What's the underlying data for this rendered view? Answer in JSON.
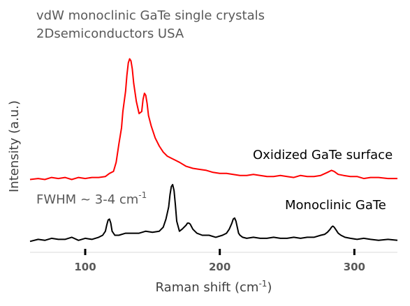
{
  "chart_data": {
    "type": "line",
    "title": "vdW monoclinic GaTe single crystals",
    "subtitle": "2Dsemiconductors USA",
    "xlabel": "Raman shift (cm",
    "xlabel_sup": "-1",
    "xlabel_end": ")",
    "ylabel": "Intensity (a.u.)",
    "xlim": [
      59,
      332
    ],
    "ylim": [
      0,
      1
    ],
    "x_ticks": [
      100,
      200,
      300
    ],
    "x_tick_labels": [
      "100",
      "200",
      "300"
    ],
    "grid": false,
    "annotations": {
      "oxidized_label": "Oxidized GaTe surface",
      "monoclinic_label": "Monoclinic GaTe",
      "fwhm_label": "FWHM ~ 3-4 cm",
      "fwhm_sup": "-1"
    },
    "series": [
      {
        "name": "Oxidized GaTe surface",
        "color": "#ff0000",
        "x": [
          59,
          65,
          70,
          75,
          80,
          85,
          90,
          95,
          100,
          105,
          110,
          115,
          118,
          121,
          123,
          125,
          127,
          128,
          130,
          131,
          132,
          133,
          134,
          135,
          136,
          138,
          140,
          142,
          143,
          144,
          145,
          146,
          147,
          149,
          152,
          155,
          158,
          161,
          164,
          167,
          170,
          175,
          180,
          185,
          190,
          195,
          200,
          205,
          210,
          215,
          220,
          225,
          230,
          235,
          240,
          245,
          250,
          255,
          260,
          265,
          270,
          275,
          280,
          283,
          285,
          288,
          292,
          297,
          302,
          307,
          312,
          318,
          325,
          332
        ],
        "y": [
          0.335,
          0.34,
          0.335,
          0.345,
          0.34,
          0.345,
          0.335,
          0.345,
          0.34,
          0.345,
          0.345,
          0.35,
          0.365,
          0.375,
          0.42,
          0.51,
          0.59,
          0.67,
          0.77,
          0.85,
          0.91,
          0.93,
          0.92,
          0.88,
          0.81,
          0.72,
          0.66,
          0.67,
          0.73,
          0.76,
          0.75,
          0.71,
          0.65,
          0.6,
          0.54,
          0.5,
          0.47,
          0.45,
          0.44,
          0.43,
          0.42,
          0.4,
          0.39,
          0.385,
          0.38,
          0.37,
          0.365,
          0.365,
          0.36,
          0.355,
          0.355,
          0.36,
          0.355,
          0.35,
          0.35,
          0.355,
          0.35,
          0.345,
          0.355,
          0.35,
          0.35,
          0.355,
          0.37,
          0.38,
          0.375,
          0.36,
          0.355,
          0.35,
          0.35,
          0.34,
          0.345,
          0.345,
          0.34,
          0.34
        ]
      },
      {
        "name": "Monoclinic GaTe",
        "color": "#000000",
        "x": [
          59,
          65,
          70,
          75,
          80,
          85,
          90,
          95,
          100,
          105,
          110,
          113,
          115,
          116,
          117,
          118,
          119,
          120,
          122,
          125,
          130,
          135,
          140,
          145,
          150,
          155,
          158,
          160,
          162,
          163,
          164,
          165,
          166,
          167,
          168,
          170,
          172,
          175,
          176,
          177,
          178,
          180,
          183,
          187,
          192,
          197,
          202,
          205,
          207,
          209,
          210,
          211,
          212,
          213,
          214,
          215,
          217,
          220,
          225,
          230,
          235,
          240,
          245,
          250,
          255,
          260,
          265,
          270,
          275,
          278,
          280,
          282,
          283,
          284,
          285,
          286,
          288,
          290,
          293,
          297,
          302,
          307,
          312,
          318,
          325,
          332
        ],
        "y": [
          0.03,
          0.04,
          0.035,
          0.045,
          0.04,
          0.04,
          0.05,
          0.035,
          0.045,
          0.04,
          0.05,
          0.06,
          0.08,
          0.11,
          0.135,
          0.14,
          0.12,
          0.08,
          0.06,
          0.06,
          0.07,
          0.07,
          0.07,
          0.08,
          0.075,
          0.08,
          0.1,
          0.14,
          0.2,
          0.26,
          0.3,
          0.31,
          0.28,
          0.21,
          0.13,
          0.08,
          0.09,
          0.11,
          0.12,
          0.12,
          0.115,
          0.09,
          0.07,
          0.06,
          0.06,
          0.05,
          0.06,
          0.07,
          0.09,
          0.12,
          0.14,
          0.145,
          0.13,
          0.1,
          0.07,
          0.06,
          0.05,
          0.045,
          0.05,
          0.045,
          0.045,
          0.05,
          0.045,
          0.045,
          0.05,
          0.045,
          0.05,
          0.05,
          0.06,
          0.065,
          0.075,
          0.09,
          0.1,
          0.105,
          0.1,
          0.09,
          0.07,
          0.06,
          0.05,
          0.045,
          0.04,
          0.045,
          0.04,
          0.035,
          0.04,
          0.035
        ]
      }
    ]
  }
}
